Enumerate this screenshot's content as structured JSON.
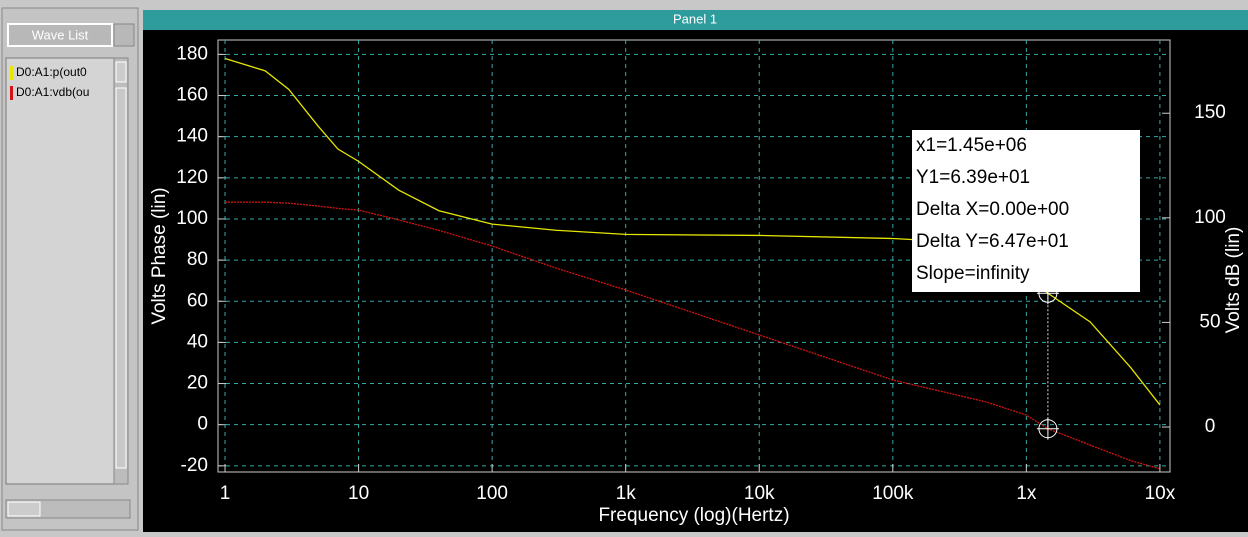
{
  "ui": {
    "wave_list_button": "Wave List",
    "panel_title": "Panel 1"
  },
  "chart_data": {
    "type": "line",
    "x_label": "Frequency (log)(Hertz)",
    "y_label": "Volts Phase (lin)",
    "y2_label": "Volts dB (lin)",
    "x": [
      1,
      2,
      3,
      5,
      7,
      10,
      20,
      40,
      100,
      300,
      1000,
      10000,
      100000,
      500000,
      1000000,
      1450000,
      3000000,
      6000000,
      10000000
    ],
    "series": [
      {
        "name": "D0:A1:p(out0",
        "color": "#e6e600",
        "axis": "y",
        "values": [
          178,
          172,
          163,
          145,
          134,
          128,
          114,
          104,
          97.5,
          94.5,
          92.5,
          92,
          90.5,
          88,
          72,
          63.9,
          50,
          28,
          9.6
        ]
      },
      {
        "name": "D0:A1:vdb(ou",
        "color": "#d41414",
        "axis": "y2",
        "values": [
          107.5,
          107.5,
          107,
          105.6,
          104.5,
          103.7,
          99,
          94,
          86.5,
          76,
          65.5,
          44,
          22.5,
          12,
          5.7,
          -0.8,
          -8.6,
          -16,
          -20
        ]
      }
    ],
    "x_log": true,
    "xlim": [
      0.886,
      11900000
    ],
    "xticks": [
      1,
      10,
      100,
      {
        "value": 1000,
        "label": "1k"
      },
      {
        "value": 10000,
        "label": "10k"
      },
      {
        "value": 100000,
        "label": "100k"
      },
      {
        "value": 1000000,
        "label": "1x"
      },
      {
        "value": 10000000,
        "label": "10x"
      }
    ],
    "ylim": [
      -23,
      187
    ],
    "yticks": [
      -20,
      0,
      20,
      40,
      60,
      80,
      100,
      120,
      140,
      160,
      180
    ],
    "y2lim": [
      -21.5,
      185
    ],
    "y2ticks": [
      0,
      50,
      100,
      150
    ],
    "grid": true,
    "cursor_readout": [
      "x1=1.45e+06",
      "Y1=6.39e+01",
      "Delta X=0.00e+00",
      "Delta Y=6.47e+01",
      "Slope=infinity"
    ]
  }
}
